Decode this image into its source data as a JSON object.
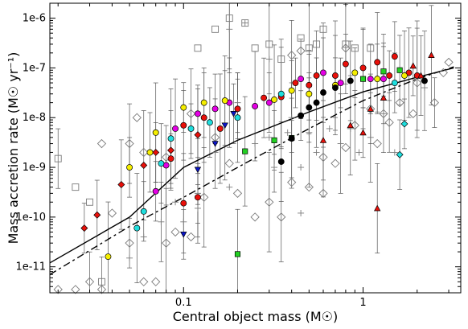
{
  "chart_data": {
    "type": "scatter",
    "xlabel": "Central object mass (M☉)",
    "ylabel": "Mass accretion rate (M☉ yr⁻¹)",
    "xscale": "log",
    "yscale": "log",
    "xlim": [
      0.018,
      3.5
    ],
    "ylim": [
      3e-12,
      2e-06
    ],
    "x_ticks": [
      0.1,
      1
    ],
    "x_tick_labels": [
      "0.1",
      "1"
    ],
    "y_ticks": [
      1e-11,
      1e-10,
      1e-09,
      1e-08,
      1e-07,
      1e-06
    ],
    "y_tick_labels": [
      "1e-11",
      "1e-10",
      "1e-9",
      "1e-8",
      "1e-7",
      "1e-6"
    ],
    "grid": false,
    "legend": "none",
    "colors": {
      "red": "#e8100a",
      "magenta": "#e400e4",
      "yellow": "#f5ee00",
      "cyan": "#1fdede",
      "blue": "#0a14c8",
      "green": "#22d022",
      "black": "#000000",
      "grey": "#7a7a7a"
    },
    "series": [
      {
        "marker": "circle",
        "color": "red",
        "points": [
          [
            0.12,
            2.5e-10
          ],
          [
            0.1,
            1.9e-10
          ],
          [
            0.085,
            1.5e-09
          ],
          [
            0.1,
            7e-09
          ],
          [
            0.13,
            1e-08
          ],
          [
            0.16,
            6e-09
          ],
          [
            0.2,
            1.5e-08
          ],
          [
            0.28,
            2.5e-08
          ],
          [
            0.35,
            2.6e-08
          ],
          [
            0.42,
            5e-08
          ],
          [
            0.5,
            4.5e-08
          ],
          [
            0.55,
            7e-08
          ],
          [
            0.7,
            7e-08
          ],
          [
            0.8,
            1.2e-07
          ],
          [
            1.0,
            1e-07
          ],
          [
            1.2,
            1.3e-07
          ],
          [
            1.4,
            7e-08
          ],
          [
            1.5,
            1.7e-07
          ],
          [
            1.8,
            8e-08
          ],
          [
            2.0,
            7e-08
          ]
        ]
      },
      {
        "marker": "circle",
        "color": "magenta",
        "points": [
          [
            0.07,
            3.3e-10
          ],
          [
            0.08,
            1.1e-09
          ],
          [
            0.09,
            6e-09
          ],
          [
            0.12,
            1.2e-08
          ],
          [
            0.15,
            1.5e-08
          ],
          [
            0.18,
            2e-08
          ],
          [
            0.25,
            1.7e-08
          ],
          [
            0.3,
            2e-08
          ],
          [
            0.45,
            6e-08
          ],
          [
            0.6,
            8e-08
          ],
          [
            0.75,
            5e-08
          ],
          [
            1.1,
            6e-08
          ],
          [
            1.3,
            6e-08
          ]
        ]
      },
      {
        "marker": "circle",
        "color": "yellow",
        "points": [
          [
            0.038,
            1.6e-11
          ],
          [
            0.05,
            1e-09
          ],
          [
            0.065,
            2e-09
          ],
          [
            0.07,
            5e-09
          ],
          [
            0.1,
            1.6e-08
          ],
          [
            0.13,
            2e-08
          ],
          [
            0.17,
            2.2e-08
          ],
          [
            0.32,
            2.3e-08
          ],
          [
            0.4,
            3.5e-08
          ],
          [
            0.5,
            3e-08
          ],
          [
            0.7,
            4.5e-08
          ],
          [
            0.9,
            8e-08
          ],
          [
            1.2,
            6e-08
          ],
          [
            1.7,
            7e-08
          ]
        ]
      },
      {
        "marker": "circle",
        "color": "cyan",
        "points": [
          [
            0.055,
            6e-11
          ],
          [
            0.06,
            1.3e-10
          ],
          [
            0.075,
            1.2e-09
          ],
          [
            0.085,
            3.8e-09
          ],
          [
            0.11,
            6e-09
          ],
          [
            0.14,
            8e-09
          ],
          [
            0.2,
            1e-08
          ],
          [
            0.35,
            3e-08
          ],
          [
            1.5,
            5e-08
          ]
        ]
      },
      {
        "marker": "circle",
        "color": "black",
        "points": [
          [
            0.35,
            1.3e-09
          ],
          [
            0.4,
            3.8e-09
          ],
          [
            0.45,
            1.1e-08
          ],
          [
            0.5,
            1.6e-08
          ],
          [
            0.55,
            2e-08
          ],
          [
            0.6,
            3.2e-08
          ],
          [
            0.7,
            4e-08
          ],
          [
            0.85,
            5.5e-08
          ],
          [
            2.2,
            5.5e-08
          ]
        ]
      },
      {
        "marker": "diamond",
        "color": "red",
        "points": [
          [
            0.028,
            6e-11
          ],
          [
            0.033,
            1.1e-10
          ],
          [
            0.045,
            4.5e-10
          ],
          [
            0.06,
            1.1e-09
          ],
          [
            0.07,
            2e-09
          ],
          [
            0.085,
            2.2e-09
          ],
          [
            0.12,
            4.5e-09
          ]
        ]
      },
      {
        "marker": "diamond",
        "color": "cyan",
        "points": [
          [
            1.7,
            7.5e-09
          ],
          [
            1.6,
            1.8e-09
          ]
        ]
      },
      {
        "marker": "diamond",
        "color": "grey",
        "open": true,
        "points": [
          [
            0.02,
            3.5e-12
          ],
          [
            0.025,
            3.5e-12
          ],
          [
            0.03,
            5e-12
          ],
          [
            0.035,
            3.5e-12
          ],
          [
            0.04,
            1.2e-10
          ],
          [
            0.05,
            3e-11
          ],
          [
            0.06,
            5e-12
          ],
          [
            0.07,
            5e-12
          ],
          [
            0.08,
            3e-11
          ],
          [
            0.09,
            5e-11
          ],
          [
            0.11,
            4e-11
          ],
          [
            0.13,
            2.5e-10
          ],
          [
            0.2,
            3e-10
          ],
          [
            0.25,
            1e-10
          ],
          [
            0.35,
            1e-10
          ],
          [
            0.4,
            5e-10
          ],
          [
            0.5,
            4e-10
          ],
          [
            0.6,
            1.6e-09
          ],
          [
            0.7,
            1.2e-09
          ],
          [
            0.8,
            2.5e-09
          ],
          [
            0.9,
            7e-09
          ],
          [
            1.1,
            1.5e-08
          ],
          [
            1.3,
            1.2e-08
          ],
          [
            1.4,
            8e-09
          ],
          [
            1.6,
            2e-08
          ],
          [
            1.9,
            1.2e-08
          ],
          [
            2.5,
            2e-08
          ],
          [
            2.8,
            8e-08
          ],
          [
            3.0,
            1.3e-07
          ],
          [
            2.0,
            5e-08
          ],
          [
            1.2,
            3e-09
          ],
          [
            0.6,
            3e-10
          ],
          [
            0.3,
            2e-10
          ],
          [
            0.18,
            1.2e-09
          ],
          [
            0.15,
            4e-09
          ],
          [
            0.11,
            1.2e-08
          ],
          [
            0.08,
            1.6e-09
          ],
          [
            0.06,
            2e-09
          ],
          [
            0.05,
            3e-09
          ],
          [
            0.035,
            3e-09
          ],
          [
            0.055,
            1e-08
          ],
          [
            0.4,
            1.8e-07
          ],
          [
            0.45,
            2.2e-07
          ],
          [
            0.8,
            2.5e-07
          ]
        ]
      },
      {
        "marker": "square",
        "color": "green",
        "points": [
          [
            0.2,
            1.8e-11
          ],
          [
            0.22,
            2.1e-09
          ],
          [
            0.32,
            3.5e-09
          ],
          [
            0.4,
            3.9e-09
          ],
          [
            1.0,
            6e-08
          ],
          [
            1.3,
            8.5e-08
          ],
          [
            1.6,
            9e-08
          ]
        ]
      },
      {
        "marker": "square",
        "color": "grey",
        "open": true,
        "points": [
          [
            0.02,
            1.5e-09
          ],
          [
            0.025,
            4e-10
          ],
          [
            0.03,
            2e-10
          ],
          [
            0.035,
            5e-12
          ],
          [
            0.12,
            2.5e-07
          ],
          [
            0.15,
            6e-07
          ],
          [
            0.18,
            1e-06
          ],
          [
            0.22,
            8e-07
          ],
          [
            0.25,
            2.5e-07
          ],
          [
            0.3,
            3e-07
          ],
          [
            0.35,
            1.5e-07
          ],
          [
            0.45,
            4e-07
          ],
          [
            0.5,
            2.5e-07
          ],
          [
            0.55,
            3e-07
          ],
          [
            0.6,
            6e-07
          ],
          [
            0.8,
            3e-07
          ],
          [
            0.9,
            2.5e-07
          ],
          [
            1.1,
            2.5e-07
          ]
        ]
      },
      {
        "marker": "triangle-down",
        "color": "blue",
        "points": [
          [
            0.1,
            4.5e-11
          ],
          [
            0.12,
            9e-10
          ],
          [
            0.15,
            3e-09
          ],
          [
            0.17,
            7e-09
          ],
          [
            0.19,
            1.2e-08
          ]
        ]
      },
      {
        "marker": "triangle-up",
        "color": "red",
        "points": [
          [
            0.6,
            3.5e-09
          ],
          [
            0.85,
            7e-09
          ],
          [
            1.0,
            5e-09
          ],
          [
            1.1,
            1.5e-08
          ],
          [
            1.2,
            1.5e-10
          ],
          [
            1.3,
            2.5e-08
          ],
          [
            1.9,
            1.1e-07
          ],
          [
            2.1,
            7e-08
          ],
          [
            2.4,
            1.8e-07
          ]
        ]
      },
      {
        "marker": "plus",
        "color": "grey",
        "points": [
          [
            0.05,
            1.5e-11
          ],
          [
            0.06,
            4e-11
          ],
          [
            0.075,
            8e-11
          ],
          [
            0.09,
            2e-10
          ],
          [
            0.1,
            8e-11
          ],
          [
            0.12,
            1.5e-10
          ],
          [
            0.15,
            2e-09
          ],
          [
            0.18,
            4e-10
          ],
          [
            0.2,
            2e-08
          ],
          [
            0.25,
            3e-09
          ],
          [
            0.3,
            4e-09
          ],
          [
            0.32,
            1e-09
          ],
          [
            0.38,
            5e-09
          ],
          [
            0.45,
            1e-09
          ],
          [
            0.5,
            5e-09
          ],
          [
            0.55,
            2e-09
          ],
          [
            0.65,
            6e-09
          ],
          [
            0.75,
            3e-09
          ],
          [
            0.85,
            6e-09
          ],
          [
            0.95,
            2e-09
          ],
          [
            1.1,
            4e-09
          ],
          [
            1.3,
            1.2e-08
          ],
          [
            1.5,
            2e-09
          ],
          [
            0.18,
            6e-07
          ],
          [
            0.22,
            8e-07
          ],
          [
            0.3,
            1.5e-07
          ],
          [
            0.4,
            1e-08
          ],
          [
            1.9,
            1e-07
          ],
          [
            2.2,
            4e-08
          ],
          [
            0.12,
            3e-10
          ],
          [
            0.45,
            1.2e-10
          ]
        ]
      }
    ],
    "fit_lines": [
      {
        "style": "solid",
        "points": [
          [
            0.018,
            1.2e-11
          ],
          [
            0.05,
            1e-10
          ],
          [
            0.1,
            1e-09
          ],
          [
            0.2,
            3.5e-09
          ],
          [
            0.5,
            1.3e-08
          ],
          [
            1.0,
            3.3e-08
          ],
          [
            2.0,
            6.5e-08
          ],
          [
            3.2,
            1e-07
          ]
        ]
      },
      {
        "style": "dashed",
        "points": [
          [
            0.018,
            7e-12
          ],
          [
            0.05,
            6.5e-11
          ],
          [
            0.1,
            2.5e-10
          ],
          [
            0.2,
            1e-09
          ],
          [
            0.5,
            6e-09
          ],
          [
            1.0,
            2.2e-08
          ],
          [
            2.0,
            6e-08
          ],
          [
            3.2,
            1.05e-07
          ]
        ]
      }
    ]
  }
}
